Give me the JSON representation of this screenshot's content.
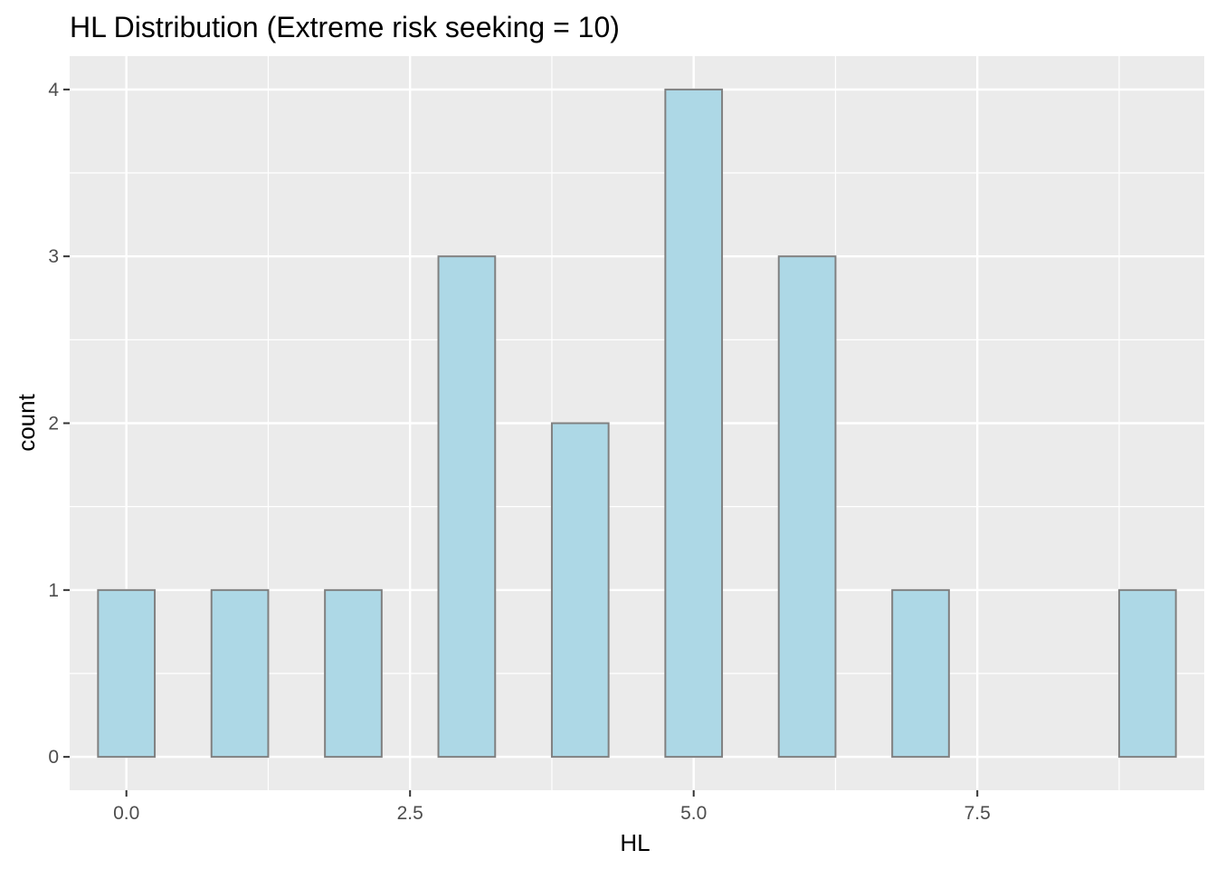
{
  "chart_data": {
    "type": "bar",
    "title": "HL Distribution (Extreme risk seeking = 10)",
    "xlabel": "HL",
    "ylabel": "count",
    "bin_width": 0.5,
    "bins": [
      {
        "x": 0,
        "count": 1
      },
      {
        "x": 0.5,
        "count": 0
      },
      {
        "x": 1,
        "count": 1
      },
      {
        "x": 1.5,
        "count": 0
      },
      {
        "x": 2,
        "count": 1
      },
      {
        "x": 2.5,
        "count": 0
      },
      {
        "x": 3,
        "count": 3
      },
      {
        "x": 3.5,
        "count": 0
      },
      {
        "x": 4,
        "count": 2
      },
      {
        "x": 4.5,
        "count": 0
      },
      {
        "x": 5,
        "count": 4
      },
      {
        "x": 5.5,
        "count": 0
      },
      {
        "x": 6,
        "count": 3
      },
      {
        "x": 6.5,
        "count": 0
      },
      {
        "x": 7,
        "count": 1
      },
      {
        "x": 7.5,
        "count": 0
      },
      {
        "x": 8,
        "count": 0
      },
      {
        "x": 8.5,
        "count": 0
      },
      {
        "x": 9,
        "count": 1
      }
    ],
    "xlim": [
      -0.5,
      9.5
    ],
    "ylim": [
      -0.2,
      4.2
    ],
    "x_ticks": [
      0,
      2.5,
      5,
      7.5
    ],
    "x_tick_labels": [
      "0.0",
      "2.5",
      "5.0",
      "7.5"
    ],
    "y_ticks": [
      0,
      1,
      2,
      3,
      4
    ],
    "y_tick_labels": [
      "0",
      "1",
      "2",
      "3",
      "4"
    ],
    "grid": true,
    "bar_fill": "#add8e6",
    "bar_stroke": "#808080",
    "panel_background": "#ebebeb",
    "grid_color": "#ffffff"
  }
}
